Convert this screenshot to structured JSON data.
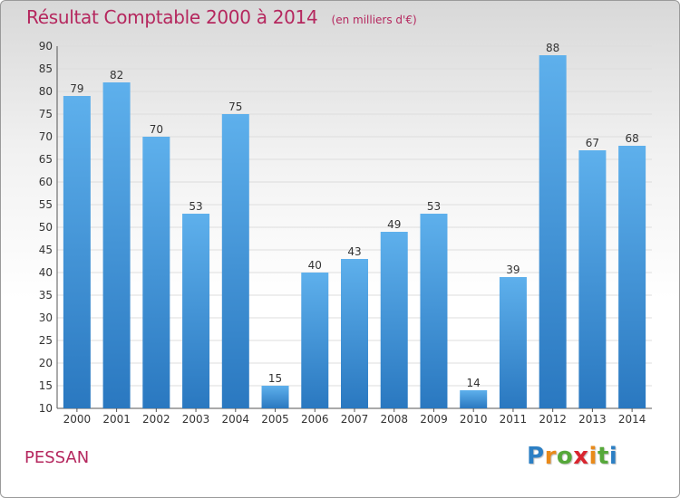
{
  "header": {
    "title": "Résultat Comptable 2000 à 2014",
    "unit": "(en milliers d'€)"
  },
  "footer": {
    "place": "PESSAN",
    "logo_letters": [
      "P",
      "r",
      "o",
      "x",
      "i",
      "t",
      "i"
    ],
    "logo_colors": [
      "#2c7fc4",
      "#e98a1a",
      "#56a83a",
      "#d9262f",
      "#e98a1a",
      "#56a83a",
      "#2c7fc4"
    ]
  },
  "colors": {
    "bar": "#4aa0e3",
    "bar_dark": "#2a78c0",
    "grid": "#dddddd",
    "title": "#b5275e"
  },
  "chart_data": {
    "type": "bar",
    "title": "Résultat Comptable 2000 à 2014",
    "xlabel": "",
    "ylabel": "",
    "categories": [
      "2000",
      "2001",
      "2002",
      "2003",
      "2004",
      "2005",
      "2006",
      "2007",
      "2008",
      "2009",
      "2010",
      "2011",
      "2012",
      "2013",
      "2014"
    ],
    "values": [
      79,
      82,
      70,
      53,
      75,
      15,
      40,
      43,
      49,
      53,
      14,
      39,
      88,
      67,
      68
    ],
    "ylim": [
      10,
      90
    ],
    "yticks": [
      10,
      15,
      20,
      25,
      30,
      35,
      40,
      45,
      50,
      55,
      60,
      65,
      70,
      75,
      80,
      85,
      90
    ],
    "grid": true,
    "legend": "none"
  }
}
